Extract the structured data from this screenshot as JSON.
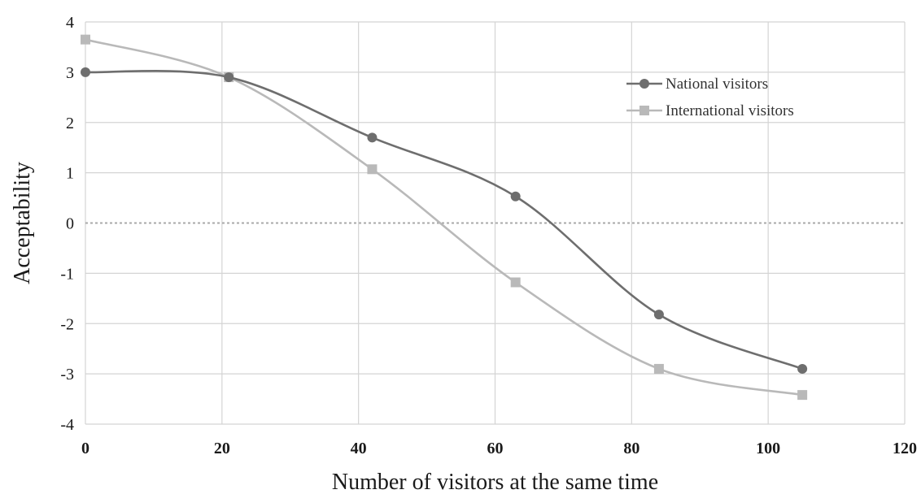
{
  "chart_data": {
    "type": "line",
    "xlabel": "Number of visitors at the same time",
    "ylabel": "Acceptability",
    "xlim": [
      0,
      120
    ],
    "ylim": [
      -4,
      4
    ],
    "x_ticks": [
      "0",
      "20",
      "40",
      "60",
      "80",
      "100",
      "120"
    ],
    "y_ticks": [
      "4",
      "3",
      "2",
      "1",
      "0",
      "-1",
      "-2",
      "-3",
      "-4"
    ],
    "grid": true,
    "legend_position": "top-right",
    "zero_line": "dotted",
    "smooth": true,
    "series": [
      {
        "name": "National visitors",
        "marker": "circle",
        "color": "#6e6e6e",
        "x": [
          0,
          21,
          42,
          63,
          84,
          105
        ],
        "values": [
          3.0,
          2.9,
          1.7,
          0.53,
          -1.82,
          -2.9
        ]
      },
      {
        "name": "International visitors",
        "marker": "square",
        "color": "#b9b9b9",
        "x": [
          0,
          21,
          42,
          63,
          84,
          105
        ],
        "values": [
          3.65,
          2.9,
          1.07,
          -1.18,
          -2.9,
          -3.42
        ]
      }
    ]
  }
}
